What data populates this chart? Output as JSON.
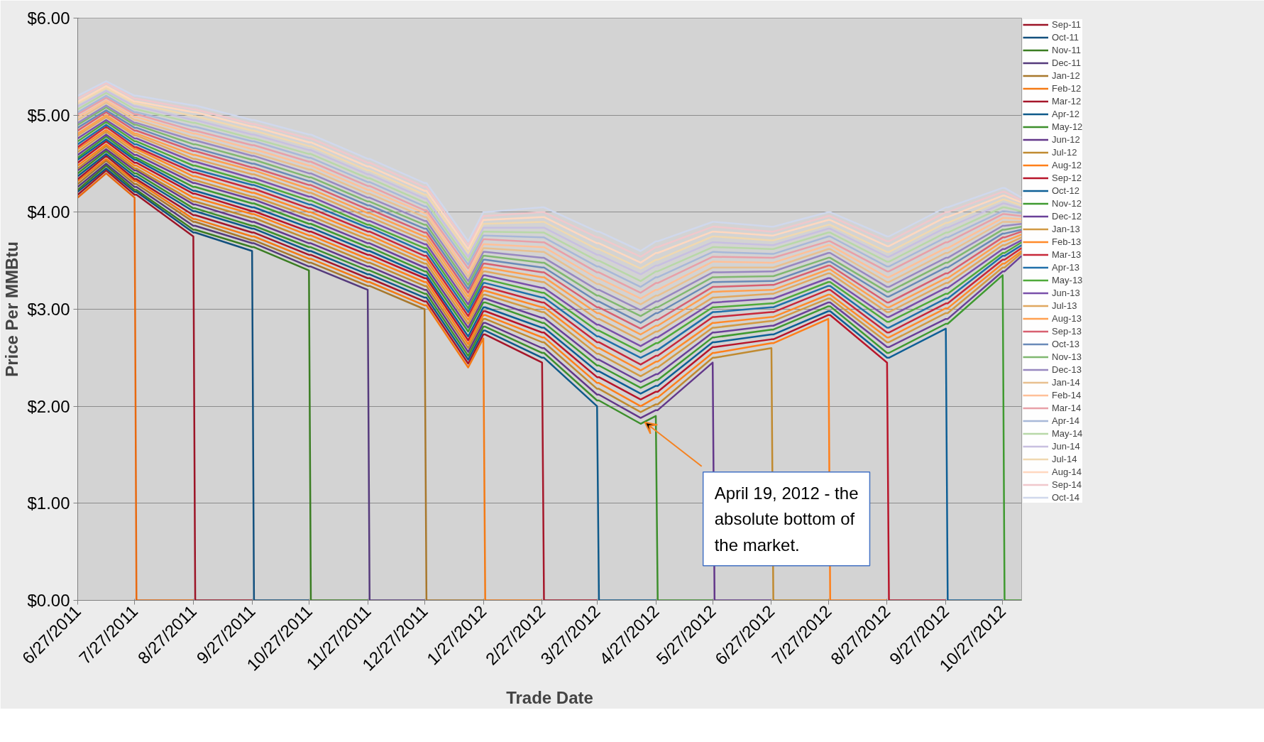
{
  "chart_data": {
    "type": "line",
    "xlabel": "Trade Date",
    "ylabel": "Price Per MMBtu",
    "x": [
      "2011-06-27",
      "2011-07-12",
      "2011-07-27",
      "2011-07-28",
      "2011-08-27",
      "2011-08-28",
      "2011-09-27",
      "2011-09-28",
      "2011-10-27",
      "2011-10-28",
      "2011-11-27",
      "2011-11-28",
      "2011-12-27",
      "2011-12-28",
      "2012-01-19",
      "2012-01-27",
      "2012-01-28",
      "2012-02-27",
      "2012-02-28",
      "2012-03-27",
      "2012-03-28",
      "2012-04-19",
      "2012-04-27",
      "2012-04-28",
      "2012-05-27",
      "2012-05-28",
      "2012-06-27",
      "2012-06-28",
      "2012-07-27",
      "2012-07-28",
      "2012-08-27",
      "2012-08-28",
      "2012-09-27",
      "2012-09-28",
      "2012-10-27",
      "2012-10-28",
      "2012-11-06"
    ],
    "xlim": [
      "2011-06-27",
      "2012-11-06"
    ],
    "xticks": [
      {
        "value": "2011-06-27",
        "label": "6/27/2011"
      },
      {
        "value": "2011-07-27",
        "label": "7/27/2011"
      },
      {
        "value": "2011-08-27",
        "label": "8/27/2011"
      },
      {
        "value": "2011-09-27",
        "label": "9/27/2011"
      },
      {
        "value": "2011-10-27",
        "label": "10/27/2011"
      },
      {
        "value": "2011-11-27",
        "label": "11/27/2011"
      },
      {
        "value": "2011-12-27",
        "label": "12/27/2011"
      },
      {
        "value": "2012-01-27",
        "label": "1/27/2012"
      },
      {
        "value": "2012-02-27",
        "label": "2/27/2012"
      },
      {
        "value": "2012-03-27",
        "label": "3/27/2012"
      },
      {
        "value": "2012-04-27",
        "label": "4/27/2012"
      },
      {
        "value": "2012-05-27",
        "label": "5/27/2012"
      },
      {
        "value": "2012-06-27",
        "label": "6/27/2012"
      },
      {
        "value": "2012-07-27",
        "label": "7/27/2012"
      },
      {
        "value": "2012-08-27",
        "label": "8/27/2012"
      },
      {
        "value": "2012-09-27",
        "label": "9/27/2012"
      },
      {
        "value": "2012-10-27",
        "label": "10/27/2012"
      }
    ],
    "ylim": [
      0,
      6
    ],
    "yticks": [
      {
        "value": 0,
        "label": "$0.00"
      },
      {
        "value": 1,
        "label": "$1.00"
      },
      {
        "value": 2,
        "label": "$2.00"
      },
      {
        "value": 3,
        "label": "$3.00"
      },
      {
        "value": 4,
        "label": "$4.00"
      },
      {
        "value": 5,
        "label": "$5.00"
      },
      {
        "value": 6,
        "label": "$6.00"
      }
    ],
    "grid": "y",
    "legend": "right",
    "annotations": [
      {
        "text": "April 19, 2012 - the absolute bottom of the market.",
        "x": "2012-04-19",
        "y": 1.82
      }
    ],
    "series": [
      {
        "color": "#e8690f",
        "values": [
          4.15,
          4.4,
          4.15,
          0,
          0,
          null,
          null,
          null,
          null,
          null,
          null,
          null,
          null,
          null,
          null,
          null,
          null,
          null,
          null,
          null,
          null,
          null,
          null,
          null,
          null,
          null,
          null,
          null,
          null,
          null,
          null,
          null,
          null,
          null,
          null,
          null,
          null
        ]
      },
      {
        "name": "Sep-11",
        "color": "#9c1427",
        "values": [
          4.18,
          4.43,
          4.18,
          4.18,
          3.75,
          0,
          0,
          null,
          null,
          null,
          null,
          null,
          null,
          null,
          null,
          null,
          null,
          null,
          null,
          null,
          null,
          null,
          null,
          null,
          null,
          null,
          null,
          null,
          null,
          null,
          null,
          null,
          null,
          null,
          null,
          null,
          null
        ]
      },
      {
        "name": "Oct-11",
        "color": "#12507e",
        "values": [
          4.21,
          4.45,
          4.21,
          4.21,
          3.79,
          3.79,
          3.6,
          0,
          0,
          null,
          null,
          null,
          null,
          null,
          null,
          null,
          null,
          null,
          null,
          null,
          null,
          null,
          null,
          null,
          null,
          null,
          null,
          null,
          null,
          null,
          null,
          null,
          null,
          null,
          null,
          null,
          null
        ]
      },
      {
        "name": "Nov-11",
        "color": "#3a7d22",
        "values": [
          4.23,
          4.48,
          4.23,
          4.23,
          3.82,
          3.82,
          3.64,
          3.64,
          3.4,
          0,
          0,
          null,
          null,
          null,
          null,
          null,
          null,
          null,
          null,
          null,
          null,
          null,
          null,
          null,
          null,
          null,
          null,
          null,
          null,
          null,
          null,
          null,
          null,
          null,
          null,
          null,
          null
        ]
      },
      {
        "name": "Dec-11",
        "color": "#553a7c",
        "values": [
          4.26,
          4.5,
          4.26,
          4.26,
          3.86,
          3.86,
          3.68,
          3.68,
          3.44,
          3.44,
          3.2,
          0,
          0,
          null,
          null,
          null,
          null,
          null,
          null,
          null,
          null,
          null,
          null,
          null,
          null,
          null,
          null,
          null,
          null,
          null,
          null,
          null,
          null,
          null,
          null,
          null,
          null
        ]
      },
      {
        "name": "Jan-12",
        "color": "#a8782c",
        "values": [
          4.29,
          4.53,
          4.29,
          4.29,
          3.9,
          3.9,
          3.71,
          3.71,
          3.48,
          3.48,
          3.24,
          3.24,
          3.0,
          0,
          0,
          0,
          null,
          null,
          null,
          null,
          null,
          null,
          null,
          null,
          null,
          null,
          null,
          null,
          null,
          null,
          null,
          null,
          null,
          null,
          null,
          null,
          null
        ]
      },
      {
        "name": "Feb-12",
        "color": "#f47a14",
        "values": [
          4.32,
          4.55,
          4.32,
          4.32,
          3.93,
          3.93,
          3.75,
          3.75,
          3.52,
          3.52,
          3.28,
          3.28,
          3.04,
          3.04,
          2.4,
          2.7,
          0,
          0,
          null,
          null,
          null,
          null,
          null,
          null,
          null,
          null,
          null,
          null,
          null,
          null,
          null,
          null,
          null,
          null,
          null,
          null,
          null
        ]
      },
      {
        "name": "Mar-12",
        "color": "#a5162a",
        "values": [
          4.34,
          4.58,
          4.34,
          4.34,
          3.97,
          3.97,
          3.79,
          3.79,
          3.56,
          3.56,
          3.32,
          3.32,
          3.08,
          3.08,
          2.44,
          2.74,
          2.74,
          2.45,
          0,
          0,
          null,
          null,
          null,
          null,
          null,
          null,
          null,
          null,
          null,
          null,
          null,
          null,
          null,
          null,
          null,
          null,
          null
        ]
      },
      {
        "name": "Apr-12",
        "color": "#0f5a8a",
        "values": [
          4.37,
          4.6,
          4.37,
          4.37,
          4.01,
          4.01,
          3.83,
          3.83,
          3.6,
          3.6,
          3.36,
          3.36,
          3.12,
          3.12,
          2.48,
          2.78,
          2.78,
          2.5,
          2.5,
          2.0,
          0,
          0,
          0,
          null,
          null,
          null,
          null,
          null,
          null,
          null,
          null,
          null,
          null,
          null,
          null,
          null,
          null
        ]
      },
      {
        "name": "May-12",
        "color": "#3d8f2c",
        "values": [
          4.4,
          4.63,
          4.4,
          4.4,
          4.04,
          4.04,
          3.86,
          3.86,
          3.64,
          3.64,
          3.4,
          3.4,
          3.16,
          3.16,
          2.52,
          2.82,
          2.82,
          2.55,
          2.55,
          2.06,
          2.06,
          1.82,
          1.9,
          0,
          0,
          null,
          null,
          null,
          null,
          null,
          null,
          null,
          null,
          null,
          null,
          null,
          null
        ]
      },
      {
        "name": "Jun-12",
        "color": "#63378a",
        "values": [
          4.43,
          4.65,
          4.43,
          4.43,
          4.08,
          4.08,
          3.9,
          3.9,
          3.68,
          3.68,
          3.44,
          3.44,
          3.2,
          3.2,
          2.56,
          2.86,
          2.86,
          2.6,
          2.6,
          2.12,
          2.12,
          1.88,
          1.96,
          1.96,
          2.45,
          0,
          0,
          null,
          null,
          null,
          null,
          null,
          null,
          null,
          null,
          null,
          null
        ]
      },
      {
        "name": "Jul-12",
        "color": "#c08a30",
        "values": [
          4.45,
          4.68,
          4.45,
          4.45,
          4.11,
          4.11,
          3.94,
          3.94,
          3.72,
          3.72,
          3.48,
          3.48,
          3.24,
          3.24,
          2.6,
          2.9,
          2.9,
          2.66,
          2.66,
          2.18,
          2.18,
          1.94,
          2.02,
          2.02,
          2.5,
          2.5,
          2.6,
          0,
          0,
          null,
          null,
          null,
          null,
          null,
          null,
          null,
          null
        ]
      },
      {
        "name": "Aug-12",
        "color": "#ff7f1a",
        "values": [
          4.48,
          4.7,
          4.48,
          4.48,
          4.15,
          4.15,
          3.98,
          3.98,
          3.76,
          3.76,
          3.52,
          3.52,
          3.28,
          3.28,
          2.64,
          2.94,
          2.94,
          2.71,
          2.71,
          2.24,
          2.24,
          2.0,
          2.09,
          2.09,
          2.55,
          2.55,
          2.65,
          2.65,
          2.9,
          0,
          0,
          null,
          null,
          null,
          null,
          null,
          null
        ]
      },
      {
        "name": "Sep-12",
        "color": "#b8152a",
        "values": [
          4.51,
          4.73,
          4.51,
          4.51,
          4.19,
          4.19,
          4.01,
          4.01,
          3.8,
          3.8,
          3.56,
          3.56,
          3.32,
          3.32,
          2.68,
          2.98,
          2.98,
          2.76,
          2.76,
          2.3,
          2.3,
          2.07,
          2.15,
          2.15,
          2.61,
          2.61,
          2.69,
          2.69,
          2.94,
          2.94,
          2.45,
          0,
          0,
          null,
          null,
          null,
          null
        ]
      },
      {
        "name": "Oct-12",
        "color": "#0e5f96",
        "values": [
          4.54,
          4.75,
          4.54,
          4.54,
          4.22,
          4.22,
          4.05,
          4.05,
          3.84,
          3.84,
          3.6,
          3.6,
          3.35,
          3.35,
          2.72,
          3.02,
          3.02,
          2.81,
          2.81,
          2.36,
          2.36,
          2.13,
          2.21,
          2.21,
          2.66,
          2.66,
          2.74,
          2.74,
          2.98,
          2.98,
          2.5,
          2.5,
          2.8,
          0,
          0,
          null,
          null
        ]
      },
      {
        "name": "Nov-12",
        "color": "#3f9a30",
        "values": [
          4.56,
          4.78,
          4.56,
          4.56,
          4.26,
          4.26,
          4.09,
          4.09,
          3.88,
          3.88,
          3.64,
          3.64,
          3.39,
          3.39,
          2.77,
          3.07,
          3.07,
          2.86,
          2.86,
          2.42,
          2.42,
          2.19,
          2.27,
          2.27,
          2.71,
          2.71,
          2.79,
          2.79,
          3.03,
          3.03,
          2.55,
          2.55,
          2.85,
          2.85,
          3.35,
          0,
          0
        ]
      },
      {
        "name": "Dec-12",
        "color": "#6a4099",
        "values": [
          4.59,
          4.8,
          4.59,
          4.59,
          4.3,
          4.3,
          4.13,
          4.13,
          3.92,
          3.92,
          3.68,
          3.68,
          3.43,
          3.43,
          2.81,
          3.11,
          3.11,
          2.91,
          2.91,
          2.48,
          2.48,
          2.25,
          2.33,
          2.33,
          2.76,
          2.76,
          2.83,
          2.83,
          3.07,
          3.07,
          2.61,
          2.61,
          2.9,
          2.9,
          3.39,
          3.39,
          3.55
        ]
      },
      {
        "name": "Jan-13",
        "color": "#d19a44",
        "values": [
          4.62,
          4.83,
          4.62,
          4.62,
          4.33,
          4.33,
          4.16,
          4.16,
          3.96,
          3.96,
          3.72,
          3.72,
          3.47,
          3.47,
          2.85,
          3.15,
          3.15,
          2.97,
          2.97,
          2.54,
          2.54,
          2.31,
          2.4,
          2.4,
          2.81,
          2.81,
          2.88,
          2.88,
          3.11,
          3.11,
          2.66,
          2.66,
          2.96,
          2.96,
          3.43,
          3.43,
          3.58
        ]
      },
      {
        "name": "Feb-13",
        "color": "#ff8a2a",
        "values": [
          4.65,
          4.85,
          4.65,
          4.65,
          4.37,
          4.37,
          4.2,
          4.2,
          4.0,
          4.0,
          3.76,
          3.76,
          3.51,
          3.51,
          2.89,
          3.19,
          3.19,
          3.02,
          3.02,
          2.6,
          2.6,
          2.37,
          2.46,
          2.46,
          2.86,
          2.86,
          2.92,
          2.92,
          3.15,
          3.15,
          2.71,
          2.71,
          3.01,
          3.01,
          3.47,
          3.47,
          3.6
        ]
      },
      {
        "name": "Mar-13",
        "color": "#c8283a",
        "values": [
          4.67,
          4.88,
          4.67,
          4.67,
          4.41,
          4.41,
          4.24,
          4.24,
          4.04,
          4.04,
          3.8,
          3.8,
          3.55,
          3.55,
          2.93,
          3.23,
          3.23,
          3.07,
          3.07,
          2.66,
          2.66,
          2.43,
          2.52,
          2.52,
          2.92,
          2.92,
          2.97,
          2.97,
          3.2,
          3.2,
          2.76,
          2.76,
          3.06,
          3.06,
          3.51,
          3.51,
          3.63
        ]
      },
      {
        "name": "Apr-13",
        "color": "#2070aa",
        "values": [
          4.7,
          4.9,
          4.7,
          4.7,
          4.44,
          4.44,
          4.28,
          4.28,
          4.08,
          4.08,
          3.84,
          3.84,
          3.59,
          3.59,
          2.97,
          3.27,
          3.27,
          3.12,
          3.12,
          2.72,
          2.72,
          2.5,
          2.58,
          2.58,
          2.97,
          2.97,
          3.02,
          3.02,
          3.24,
          3.24,
          2.81,
          2.81,
          3.11,
          3.11,
          3.55,
          3.55,
          3.66
        ]
      },
      {
        "name": "May-13",
        "color": "#4faa3a",
        "values": [
          4.73,
          4.93,
          4.73,
          4.73,
          4.48,
          4.48,
          4.31,
          4.31,
          4.12,
          4.12,
          3.87,
          3.87,
          3.63,
          3.63,
          3.01,
          3.31,
          3.31,
          3.17,
          3.17,
          2.78,
          2.78,
          2.56,
          2.65,
          2.65,
          3.02,
          3.02,
          3.06,
          3.06,
          3.28,
          3.28,
          2.87,
          2.87,
          3.16,
          3.16,
          3.58,
          3.58,
          3.69
        ]
      },
      {
        "name": "Jun-13",
        "color": "#7a50aa",
        "values": [
          4.76,
          4.95,
          4.76,
          4.76,
          4.52,
          4.52,
          4.35,
          4.35,
          4.16,
          4.16,
          3.91,
          3.91,
          3.67,
          3.67,
          3.05,
          3.35,
          3.35,
          3.22,
          3.22,
          2.84,
          2.84,
          2.62,
          2.71,
          2.71,
          3.07,
          3.07,
          3.11,
          3.11,
          3.32,
          3.32,
          2.92,
          2.92,
          3.22,
          3.22,
          3.62,
          3.62,
          3.71
        ]
      },
      {
        "name": "Jul-13",
        "color": "#e0a860",
        "values": [
          4.79,
          4.98,
          4.79,
          4.79,
          4.55,
          4.55,
          4.39,
          4.39,
          4.2,
          4.2,
          3.95,
          3.95,
          3.71,
          3.71,
          3.09,
          3.39,
          3.39,
          3.28,
          3.28,
          2.9,
          2.9,
          2.68,
          2.77,
          2.77,
          3.12,
          3.12,
          3.16,
          3.16,
          3.37,
          3.37,
          2.97,
          2.97,
          3.27,
          3.27,
          3.66,
          3.66,
          3.74
        ]
      },
      {
        "name": "Aug-13",
        "color": "#ffa050",
        "values": [
          4.81,
          5.0,
          4.81,
          4.81,
          4.59,
          4.59,
          4.43,
          4.43,
          4.24,
          4.24,
          3.99,
          3.99,
          3.75,
          3.75,
          3.13,
          3.43,
          3.43,
          3.33,
          3.33,
          2.96,
          2.96,
          2.74,
          2.83,
          2.83,
          3.18,
          3.18,
          3.2,
          3.2,
          3.41,
          3.41,
          3.02,
          3.02,
          3.32,
          3.32,
          3.7,
          3.7,
          3.77
        ]
      },
      {
        "name": "Sep-13",
        "color": "#d86070",
        "values": [
          4.84,
          5.03,
          4.84,
          4.84,
          4.63,
          4.63,
          4.46,
          4.46,
          4.28,
          4.28,
          4.03,
          4.03,
          3.79,
          3.79,
          3.17,
          3.47,
          3.47,
          3.38,
          3.38,
          3.02,
          3.02,
          2.8,
          2.89,
          2.89,
          3.23,
          3.23,
          3.25,
          3.25,
          3.45,
          3.45,
          3.07,
          3.07,
          3.37,
          3.37,
          3.74,
          3.74,
          3.8
        ]
      },
      {
        "name": "Oct-13",
        "color": "#6a8ab8",
        "values": [
          4.87,
          5.05,
          4.87,
          4.87,
          4.66,
          4.66,
          4.5,
          4.5,
          4.32,
          4.32,
          4.07,
          4.07,
          3.83,
          3.83,
          3.21,
          3.51,
          3.51,
          3.43,
          3.43,
          3.08,
          3.08,
          2.86,
          2.96,
          2.96,
          3.28,
          3.28,
          3.29,
          3.29,
          3.49,
          3.49,
          3.13,
          3.13,
          3.43,
          3.43,
          3.78,
          3.78,
          3.82
        ]
      },
      {
        "name": "Nov-13",
        "color": "#80b870",
        "values": [
          4.9,
          5.08,
          4.9,
          4.9,
          4.7,
          4.7,
          4.54,
          4.54,
          4.36,
          4.36,
          4.11,
          4.11,
          3.87,
          3.87,
          3.25,
          3.55,
          3.55,
          3.48,
          3.48,
          3.14,
          3.14,
          2.93,
          3.02,
          3.02,
          3.33,
          3.33,
          3.34,
          3.34,
          3.53,
          3.53,
          3.18,
          3.18,
          3.48,
          3.48,
          3.82,
          3.82,
          3.85
        ]
      },
      {
        "name": "Dec-13",
        "color": "#9888c0",
        "values": [
          4.92,
          5.1,
          4.92,
          4.92,
          4.74,
          4.74,
          4.58,
          4.58,
          4.4,
          4.4,
          4.15,
          4.15,
          3.91,
          3.91,
          3.29,
          3.59,
          3.59,
          3.53,
          3.53,
          3.2,
          3.2,
          2.99,
          3.08,
          3.08,
          3.38,
          3.38,
          3.39,
          3.39,
          3.58,
          3.58,
          3.23,
          3.23,
          3.53,
          3.53,
          3.86,
          3.86,
          3.88
        ]
      },
      {
        "name": "Jan-14",
        "color": "#e8c090",
        "values": [
          4.95,
          5.13,
          4.95,
          4.95,
          4.77,
          4.77,
          4.61,
          4.61,
          4.44,
          4.44,
          4.19,
          4.19,
          3.95,
          3.95,
          3.33,
          3.63,
          3.63,
          3.59,
          3.59,
          3.26,
          3.26,
          3.05,
          3.14,
          3.14,
          3.43,
          3.43,
          3.43,
          3.43,
          3.62,
          3.62,
          3.28,
          3.28,
          3.58,
          3.58,
          3.9,
          3.9,
          3.9
        ]
      },
      {
        "name": "Feb-14",
        "color": "#ffc098",
        "values": [
          4.98,
          5.15,
          4.98,
          4.98,
          4.81,
          4.81,
          4.65,
          4.65,
          4.48,
          4.48,
          4.23,
          4.23,
          3.99,
          3.99,
          3.37,
          3.67,
          3.67,
          3.64,
          3.64,
          3.32,
          3.32,
          3.11,
          3.2,
          3.2,
          3.49,
          3.49,
          3.48,
          3.48,
          3.66,
          3.66,
          3.33,
          3.33,
          3.63,
          3.63,
          3.94,
          3.94,
          3.93
        ]
      },
      {
        "name": "Mar-14",
        "color": "#e8a0a8",
        "values": [
          5.01,
          5.18,
          5.01,
          5.01,
          4.84,
          4.84,
          4.69,
          4.69,
          4.52,
          4.52,
          4.27,
          4.27,
          4.02,
          4.02,
          3.42,
          3.72,
          3.72,
          3.69,
          3.69,
          3.38,
          3.38,
          3.17,
          3.27,
          3.27,
          3.54,
          3.54,
          3.53,
          3.53,
          3.7,
          3.7,
          3.39,
          3.39,
          3.69,
          3.69,
          3.98,
          3.98,
          3.96
        ]
      },
      {
        "name": "Apr-14",
        "color": "#a8b8d8",
        "values": [
          5.03,
          5.2,
          5.03,
          5.03,
          4.88,
          4.88,
          4.73,
          4.73,
          4.56,
          4.56,
          4.31,
          4.31,
          4.06,
          4.06,
          3.46,
          3.76,
          3.76,
          3.74,
          3.74,
          3.44,
          3.44,
          3.23,
          3.33,
          3.33,
          3.59,
          3.59,
          3.57,
          3.57,
          3.75,
          3.75,
          3.44,
          3.44,
          3.74,
          3.74,
          4.01,
          4.01,
          3.99
        ]
      },
      {
        "name": "May-14",
        "color": "#b8d8a8",
        "values": [
          5.06,
          5.23,
          5.06,
          5.06,
          4.92,
          4.92,
          4.76,
          4.76,
          4.6,
          4.6,
          4.35,
          4.35,
          4.1,
          4.1,
          3.5,
          3.8,
          3.8,
          3.79,
          3.79,
          3.5,
          3.5,
          3.29,
          3.39,
          3.39,
          3.64,
          3.64,
          3.62,
          3.62,
          3.79,
          3.79,
          3.49,
          3.49,
          3.79,
          3.79,
          4.05,
          4.05,
          4.01
        ]
      },
      {
        "name": "Jun-14",
        "color": "#c8c0e0",
        "values": [
          5.09,
          5.25,
          5.09,
          5.09,
          4.95,
          4.95,
          4.8,
          4.8,
          4.64,
          4.64,
          4.39,
          4.39,
          4.14,
          4.14,
          3.54,
          3.84,
          3.84,
          3.84,
          3.84,
          3.56,
          3.56,
          3.36,
          3.45,
          3.45,
          3.69,
          3.69,
          3.66,
          3.66,
          3.83,
          3.83,
          3.54,
          3.54,
          3.84,
          3.84,
          4.09,
          4.09,
          4.04
        ]
      },
      {
        "name": "Jul-14",
        "color": "#f0d8b0",
        "values": [
          5.12,
          5.28,
          5.12,
          5.12,
          4.99,
          4.99,
          4.84,
          4.84,
          4.68,
          4.68,
          4.43,
          4.43,
          4.18,
          4.18,
          3.58,
          3.88,
          3.88,
          3.9,
          3.9,
          3.62,
          3.62,
          3.42,
          3.51,
          3.51,
          3.75,
          3.75,
          3.71,
          3.71,
          3.87,
          3.87,
          3.59,
          3.59,
          3.89,
          3.89,
          4.13,
          4.13,
          4.07
        ]
      },
      {
        "name": "Aug-14",
        "color": "#ffd8c0",
        "values": [
          5.14,
          5.3,
          5.14,
          5.14,
          5.03,
          5.03,
          4.88,
          4.88,
          4.72,
          4.72,
          4.47,
          4.47,
          4.22,
          4.22,
          3.62,
          3.92,
          3.92,
          3.95,
          3.95,
          3.68,
          3.68,
          3.48,
          3.58,
          3.58,
          3.8,
          3.8,
          3.76,
          3.76,
          3.92,
          3.92,
          3.65,
          3.65,
          3.95,
          3.95,
          4.17,
          4.17,
          4.1
        ]
      },
      {
        "name": "Sep-14",
        "color": "#f0c8cc",
        "values": [
          5.17,
          5.33,
          5.17,
          5.17,
          5.06,
          5.06,
          4.91,
          4.91,
          4.76,
          4.76,
          4.51,
          4.51,
          4.26,
          4.26,
          3.66,
          3.96,
          3.96,
          4.0,
          4.0,
          3.74,
          3.74,
          3.54,
          3.64,
          3.64,
          3.85,
          3.85,
          3.8,
          3.8,
          3.96,
          3.96,
          3.7,
          3.7,
          4.0,
          4.0,
          4.21,
          4.21,
          4.12
        ]
      },
      {
        "name": "Oct-14",
        "color": "#d0d8ec",
        "values": [
          5.2,
          5.35,
          5.2,
          5.2,
          5.1,
          5.1,
          4.95,
          4.95,
          4.8,
          4.8,
          4.55,
          4.55,
          4.3,
          4.3,
          3.7,
          4.0,
          4.0,
          4.05,
          4.05,
          3.8,
          3.8,
          3.6,
          3.7,
          3.7,
          3.9,
          3.9,
          3.85,
          3.85,
          4.0,
          4.0,
          3.75,
          3.75,
          4.05,
          4.05,
          4.25,
          4.25,
          4.15
        ]
      }
    ]
  }
}
